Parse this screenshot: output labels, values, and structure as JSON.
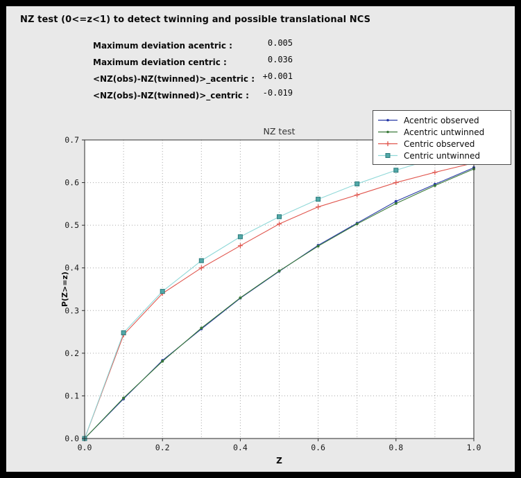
{
  "header": {
    "title": "NZ test (0<=z<1) to detect twinning and possible translational NCS",
    "stats": [
      {
        "label": "Maximum deviation acentric :",
        "value": "0.005"
      },
      {
        "label": "Maximum deviation centric :",
        "value": "0.036"
      },
      {
        "label": "<NZ(obs)-NZ(twinned)>_acentric :",
        "value": "+0.001"
      },
      {
        "label": "<NZ(obs)-NZ(twinned)>_centric :",
        "value": "-0.019"
      }
    ]
  },
  "chart_data": {
    "type": "line",
    "title": "NZ test",
    "xlabel": "Z",
    "ylabel": "P(Z>=z)",
    "xlim": [
      0.0,
      1.0
    ],
    "ylim": [
      0.0,
      0.7
    ],
    "grid": true,
    "grid_x": [
      0.1,
      0.2,
      0.3,
      0.4,
      0.5,
      0.6,
      0.7,
      0.8,
      0.9
    ],
    "grid_y": [
      0.1,
      0.2,
      0.3,
      0.4,
      0.5,
      0.6
    ],
    "xticks": {
      "values": [
        0.0,
        0.2,
        0.4,
        0.6,
        0.8,
        1.0
      ],
      "labels": [
        "0.0",
        "0.2",
        "0.4",
        "0.6",
        "0.8",
        "1.0"
      ]
    },
    "yticks": {
      "values": [
        0.0,
        0.1,
        0.2,
        0.3,
        0.4,
        0.5,
        0.6,
        0.7
      ],
      "labels": [
        "0.0",
        "0.1",
        "0.2",
        "0.3",
        "0.4",
        "0.5",
        "0.6",
        "0.7"
      ]
    },
    "legend_position": "top-right",
    "x": [
      0.0,
      0.1,
      0.2,
      0.3,
      0.4,
      0.5,
      0.6,
      0.7,
      0.8,
      0.9,
      1.0
    ],
    "series": [
      {
        "name": "Acentric observed",
        "color": "#2638a6",
        "marker": "dot",
        "values": [
          0.0,
          0.093,
          0.183,
          0.257,
          0.329,
          0.392,
          0.453,
          0.505,
          0.556,
          0.596,
          0.635
        ]
      },
      {
        "name": "Acentric untwinned",
        "color": "#3a7a3a",
        "marker": "dot",
        "values": [
          0.0,
          0.095,
          0.181,
          0.259,
          0.33,
          0.393,
          0.451,
          0.503,
          0.551,
          0.593,
          0.632
        ]
      },
      {
        "name": "Centric observed",
        "color": "#e0544c",
        "marker": "plus",
        "values": [
          0.0,
          0.243,
          0.34,
          0.4,
          0.452,
          0.503,
          0.543,
          0.571,
          0.6,
          0.624,
          0.646
        ]
      },
      {
        "name": "Centric untwinned",
        "color": "#8fd8d8",
        "marker": "square",
        "marker_fill": "#52a8a8",
        "marker_edge": "#2c7c7c",
        "values": [
          0.0,
          0.248,
          0.345,
          0.417,
          0.473,
          0.52,
          0.561,
          0.597,
          0.629,
          0.657,
          0.683
        ]
      }
    ]
  }
}
